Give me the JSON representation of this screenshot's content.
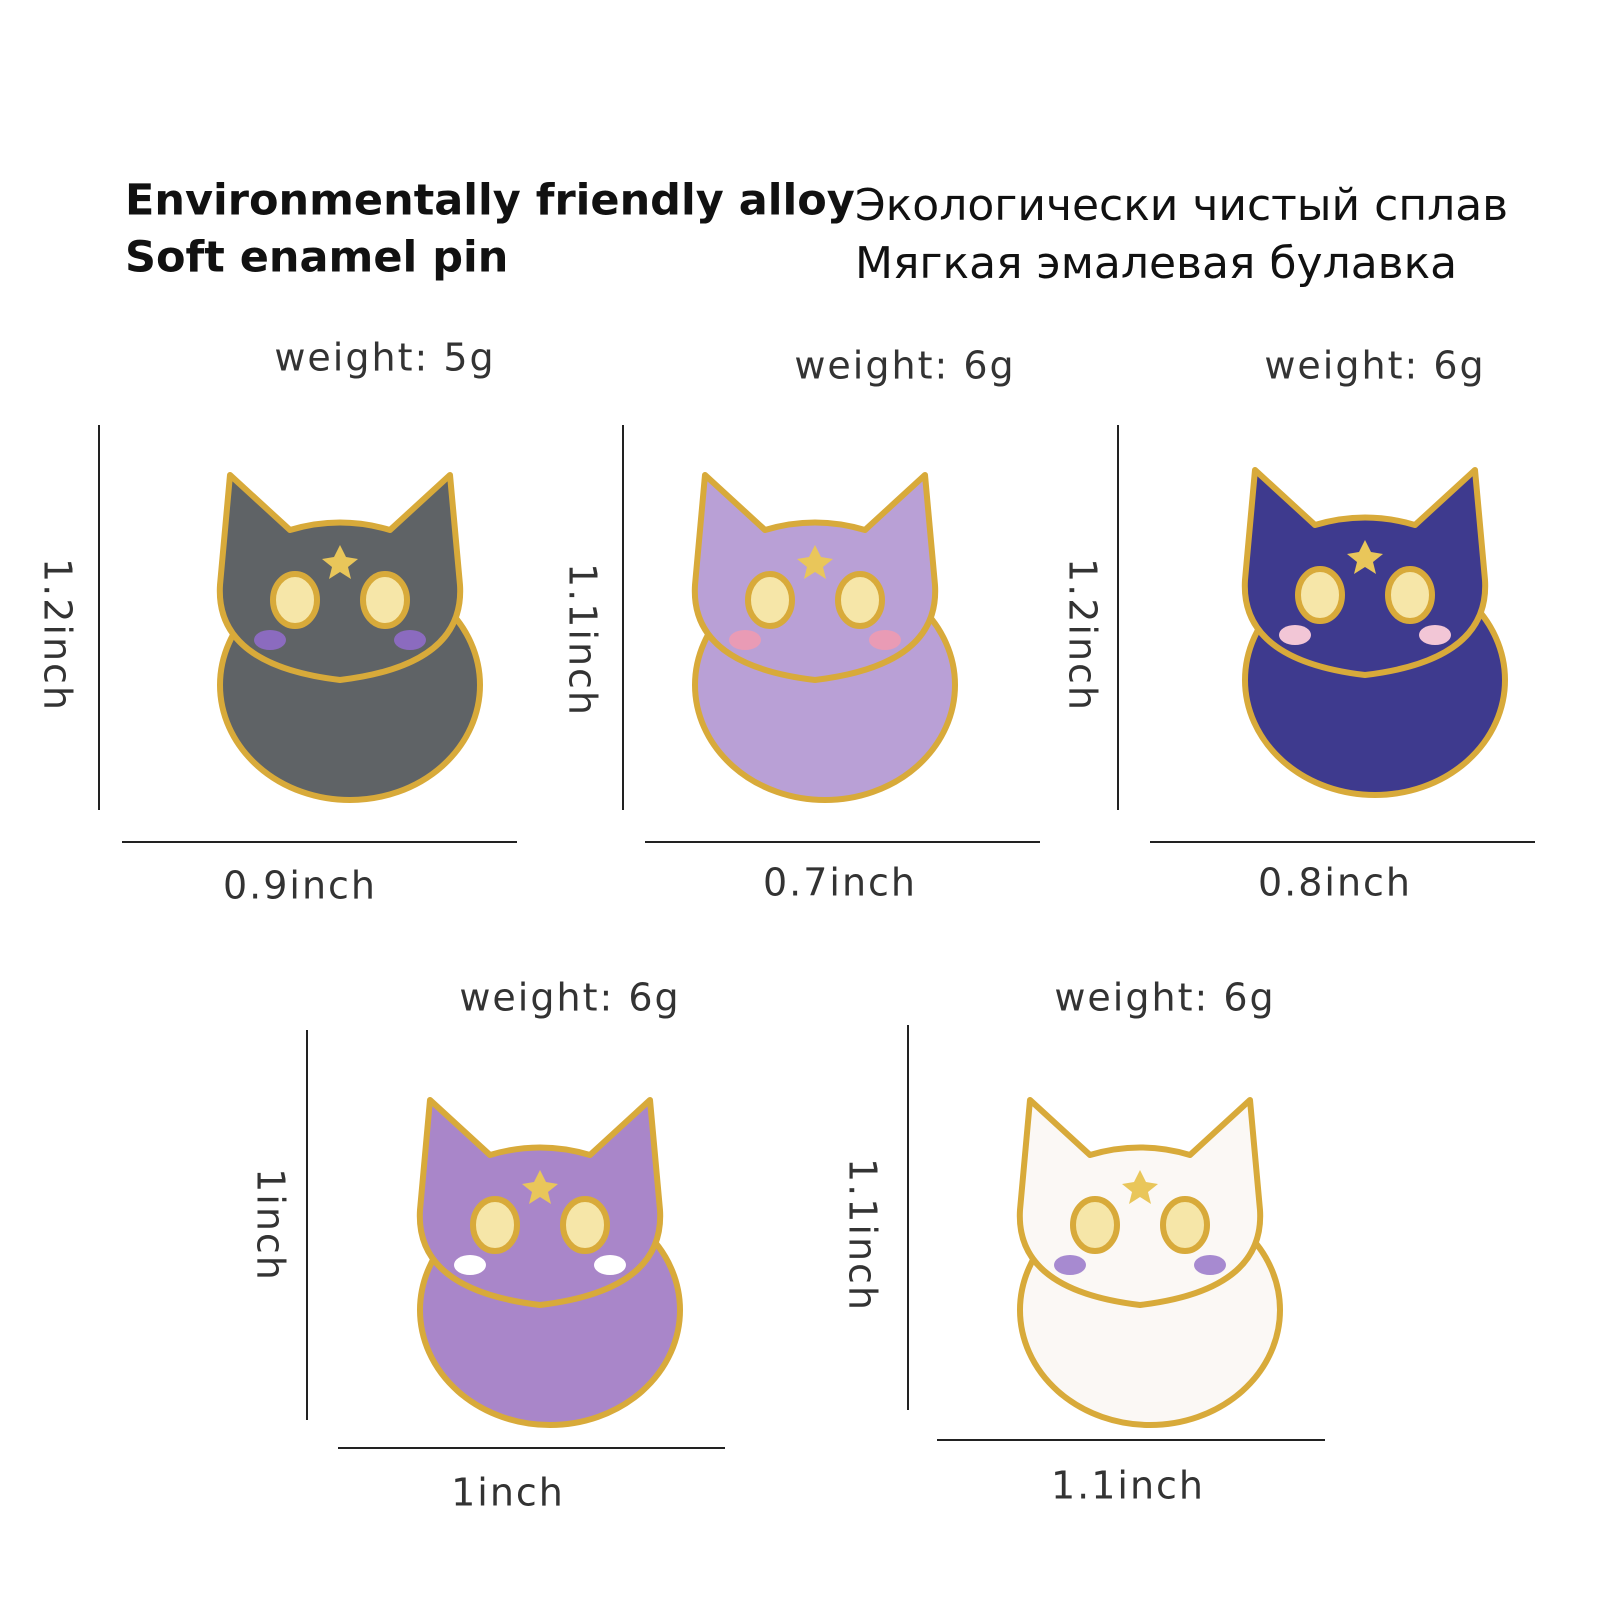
{
  "header": {
    "english": [
      "Environmentally friendly alloy",
      "Soft enamel pin"
    ],
    "russian": [
      "Экологически чистый сплав",
      "Мягкая эмалевая булавка"
    ]
  },
  "pins": [
    {
      "weight": "weight: 5g",
      "height": "1.2inch",
      "width": "0.9inch"
    },
    {
      "weight": "weight: 6g",
      "height": "1.1inch",
      "width": "0.7inch"
    },
    {
      "weight": "weight: 6g",
      "height": "1.2inch",
      "width": "0.8inch"
    },
    {
      "weight": "weight: 6g",
      "height": "1inch",
      "width": "1inch"
    },
    {
      "weight": "weight: 6g",
      "height": "1.1inch",
      "width": "1.1inch"
    }
  ]
}
